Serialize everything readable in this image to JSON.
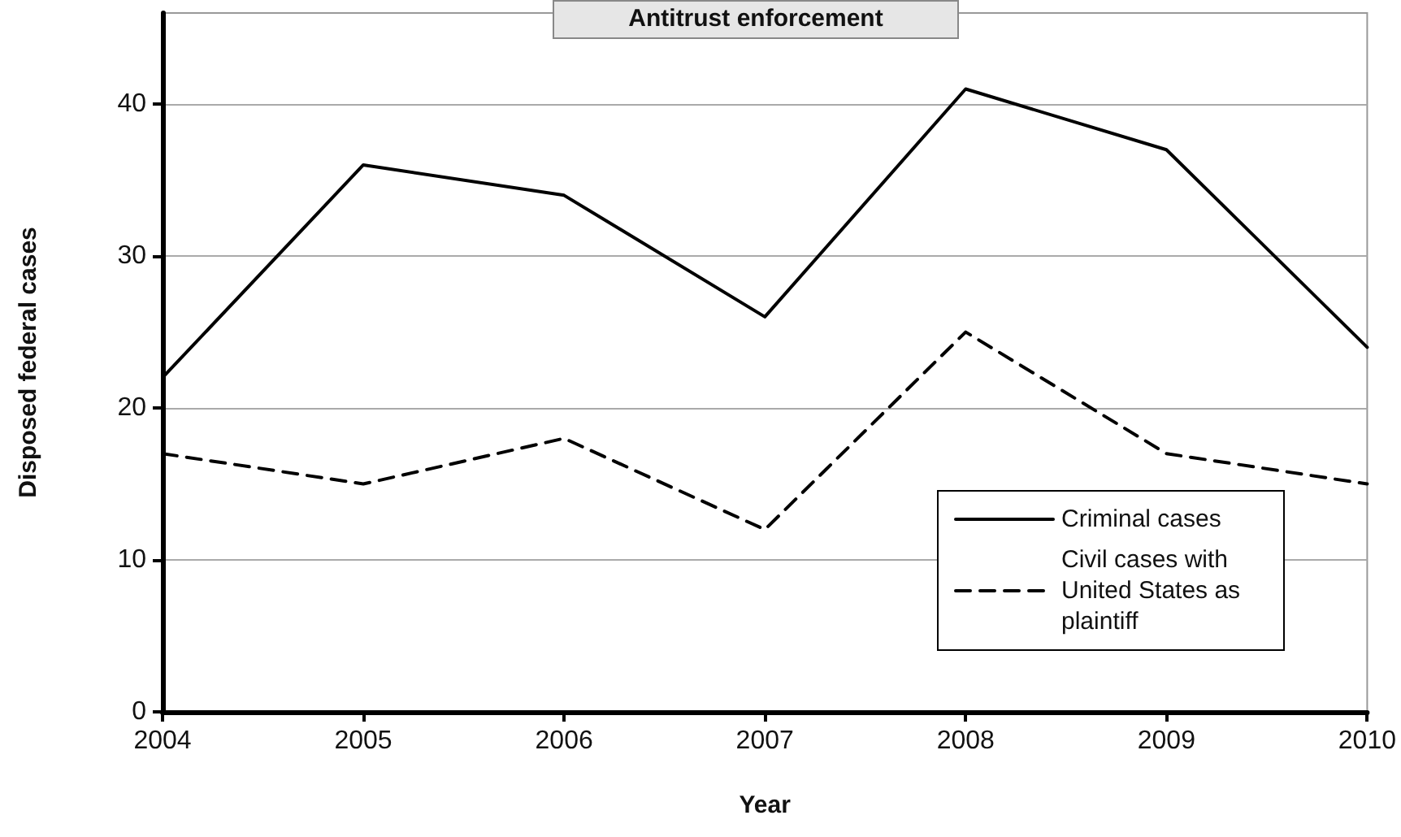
{
  "chart_data": {
    "type": "line",
    "title": "Antitrust enforcement",
    "xlabel": "Year",
    "ylabel": "Disposed federal cases",
    "x": [
      2004,
      2005,
      2006,
      2007,
      2008,
      2009,
      2010
    ],
    "series": [
      {
        "name": "Criminal cases",
        "color": "#000000",
        "line_style": "solid",
        "values": [
          22,
          36,
          34,
          26,
          41,
          37,
          24
        ]
      },
      {
        "name": "Civil cases with United States as plaintiff",
        "color": "#000000",
        "line_style": "dashed",
        "values": [
          17,
          15,
          18,
          12,
          25,
          17,
          15
        ]
      }
    ],
    "xlim": [
      2004,
      2010
    ],
    "xticks": [
      2004,
      2005,
      2006,
      2007,
      2008,
      2009,
      2010
    ],
    "ylim": [
      0,
      46
    ],
    "yticks": [
      0,
      10,
      20,
      30,
      40
    ],
    "grid": "y",
    "legend": "bottom right",
    "marker": "none"
  }
}
